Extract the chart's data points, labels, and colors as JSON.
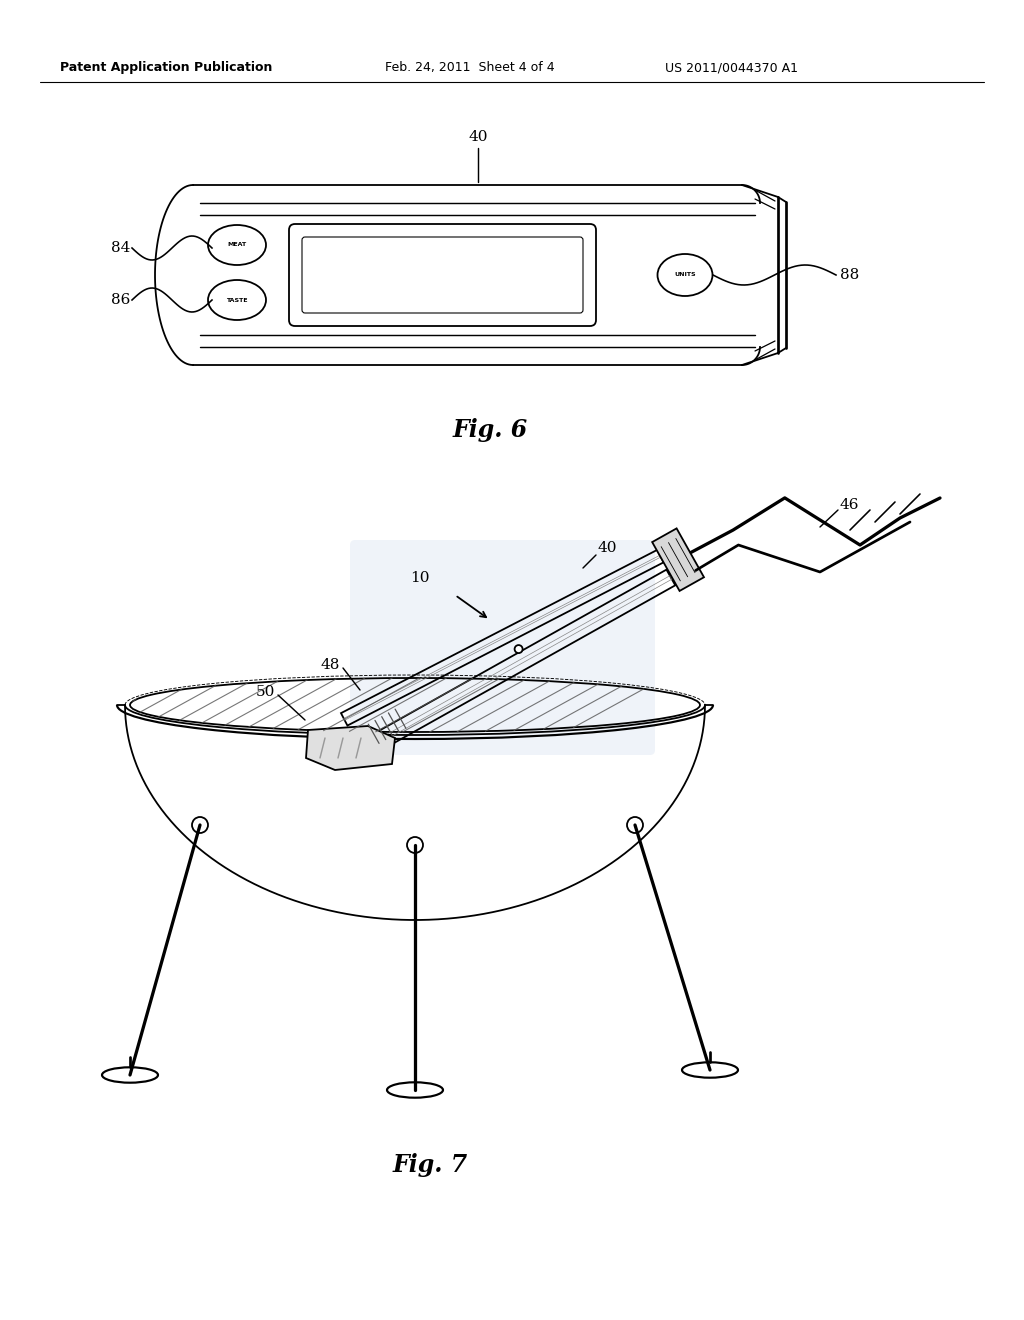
{
  "bg_color": "#ffffff",
  "header_left": "Patent Application Publication",
  "header_mid": "Feb. 24, 2011  Sheet 4 of 4",
  "header_right": "US 2011/0044370 A1",
  "fig6_label": "Fig. 6",
  "fig7_label": "Fig. 7",
  "lc": "#000000",
  "lw": 1.3,
  "label_40_f6": "40",
  "label_84": "84",
  "label_86": "86",
  "label_88": "88",
  "label_40_f7": "40",
  "label_46": "46",
  "label_10": "10",
  "label_48": "48",
  "label_50": "50"
}
